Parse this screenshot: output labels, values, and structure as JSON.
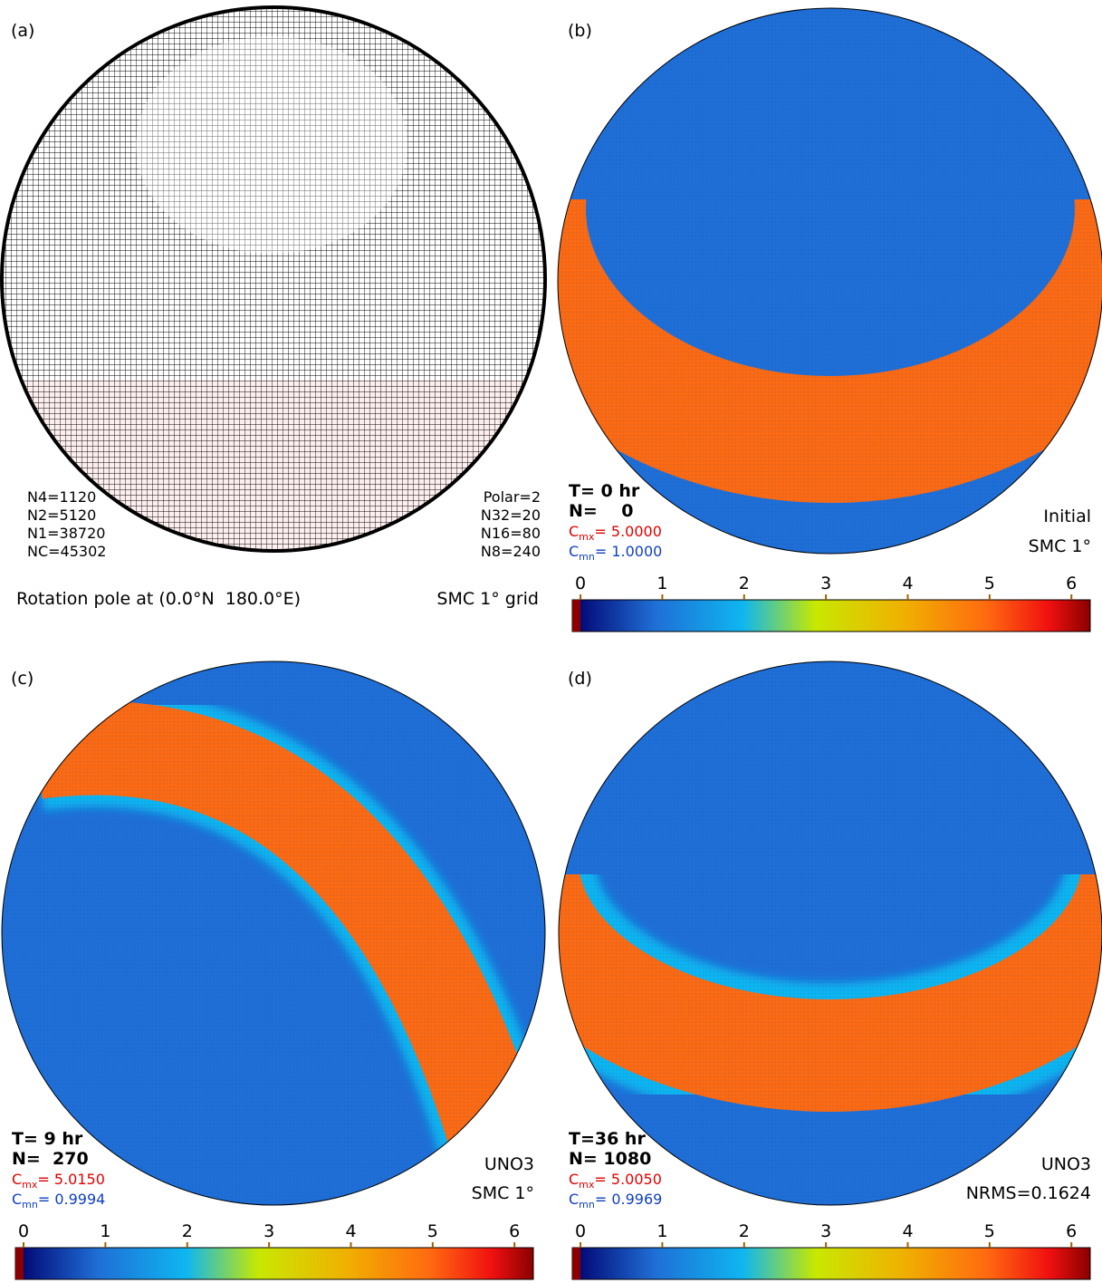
{
  "panels": [
    {
      "label": "(a)",
      "stats_left": [
        "N4=1120",
        "N2=5120",
        "N1=38720",
        "NC=45302"
      ],
      "stats_right": [
        "Polar=2",
        "N32=20",
        "N16=80",
        "N8=240"
      ],
      "caption_left": "Rotation pole at (0.0°N  180.0°E)",
      "caption_right": "SMC 1° grid"
    },
    {
      "label": "(b)",
      "time": "T= 0 hr",
      "steps": "N=    0",
      "c_max": {
        "symbol": "C",
        "subscript": "mx",
        "text": "= 5.0000"
      },
      "c_min": {
        "symbol": "C",
        "subscript": "mn",
        "text": "= 1.0000"
      },
      "notes": [
        "Initial",
        "SMC 1°"
      ]
    },
    {
      "label": "(c)",
      "time": "T= 9 hr",
      "steps": "N=  270",
      "c_max": {
        "symbol": "C",
        "subscript": "mx",
        "text": "= 5.0150"
      },
      "c_min": {
        "symbol": "C",
        "subscript": "mn",
        "text": "= 0.9994"
      },
      "notes": [
        "UNO3",
        "SMC 1°"
      ]
    },
    {
      "label": "(d)",
      "time": "T=36 hr",
      "steps": "N= 1080",
      "c_max": {
        "symbol": "C",
        "subscript": "mx",
        "text": "= 5.0050"
      },
      "c_min": {
        "symbol": "C",
        "subscript": "mn",
        "text": "= 0.9969"
      },
      "notes": [
        "UNO3",
        "NRMS=0.1624"
      ]
    }
  ],
  "colorbar": {
    "range": [
      -0.1,
      6.23
    ],
    "ticks": [
      0,
      1,
      2,
      3,
      4,
      5,
      6
    ]
  }
}
